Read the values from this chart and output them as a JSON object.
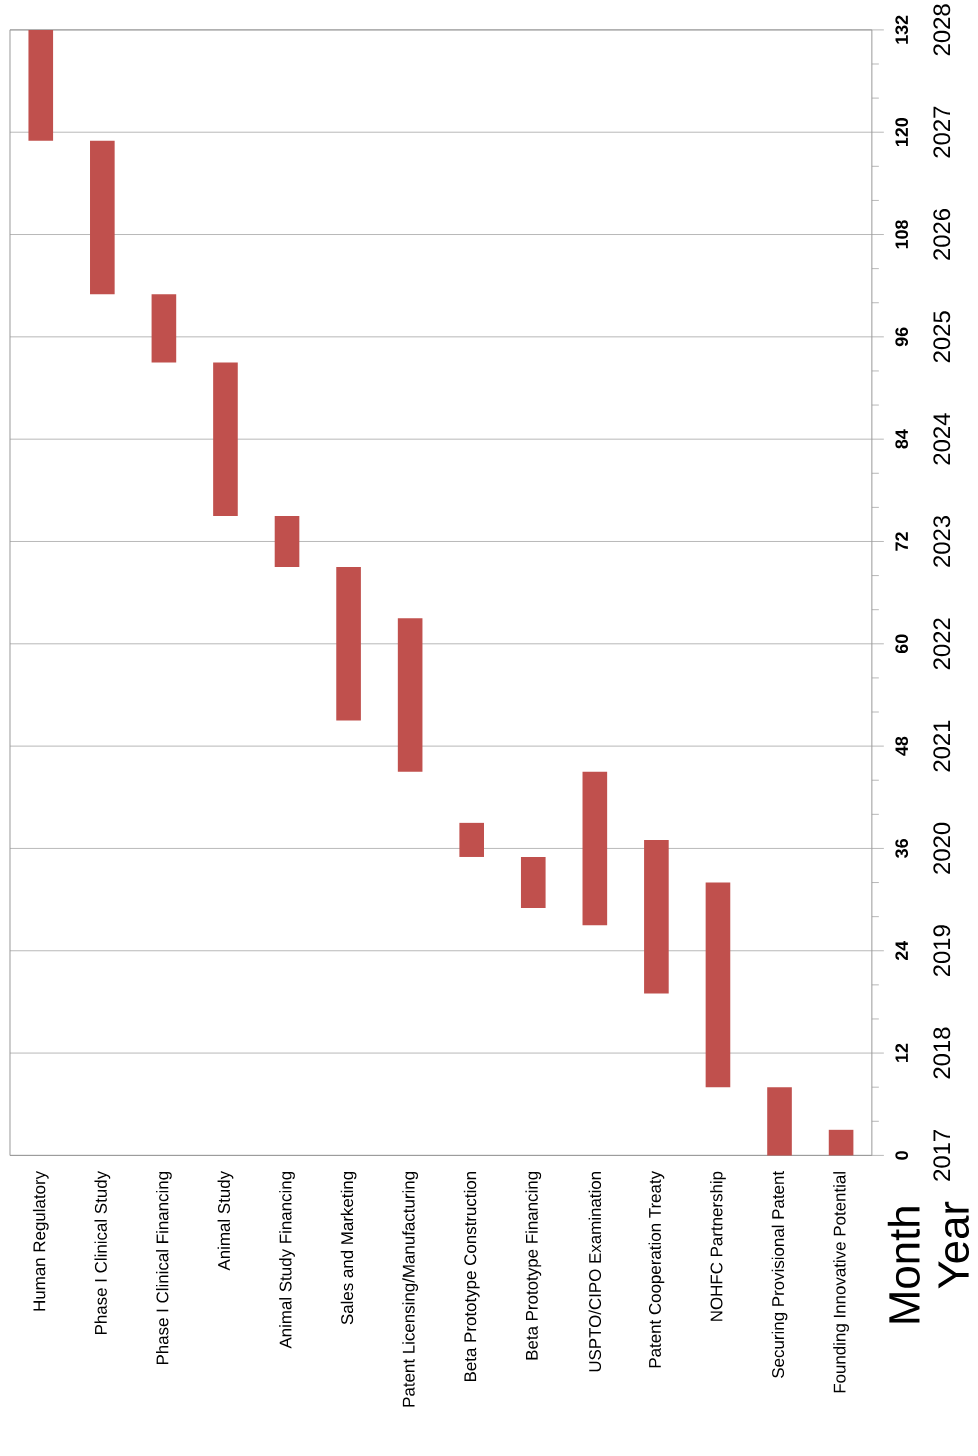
{
  "chart_data": {
    "type": "bar",
    "categories": [
      "Human Regulatory",
      "Phase I Clinical Study",
      "Phase I Clinical Financing",
      "Animal Study",
      "Animal Study Financing",
      "Sales and Marketing",
      "Patent Licensing/Manufacturing",
      "Beta Prototype Construction",
      "Beta Prototype Financing",
      "USPTO/CIPO Examination",
      "Patent Cooperation Treaty",
      "NOHFC Partnership",
      "Securing Provisional Patent",
      "Founding Innovative Potential"
    ],
    "base": [
      119,
      101,
      93,
      75,
      69,
      51,
      45,
      35,
      29,
      27,
      19,
      8,
      0,
      0
    ],
    "values": [
      13,
      18,
      8,
      18,
      6,
      18,
      18,
      4,
      6,
      18,
      18,
      24,
      8,
      3
    ],
    "color": "#c0504d",
    "ylim": [
      0,
      132
    ],
    "yticks": [
      0,
      12,
      24,
      36,
      48,
      60,
      72,
      84,
      96,
      108,
      120,
      132
    ],
    "y2lim": [
      2017,
      2028
    ],
    "y2ticks": [
      2017,
      2018,
      2019,
      2020,
      2021,
      2022,
      2023,
      2024,
      2025,
      2026,
      2027,
      2028
    ],
    "ylabel": "Month",
    "y2label": "Year",
    "grid": "y"
  }
}
